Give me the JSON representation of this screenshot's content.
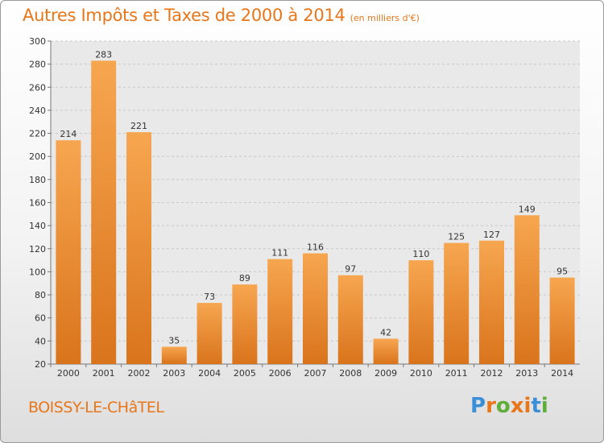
{
  "chart_data": {
    "type": "bar",
    "title": "Autres Impôts et Taxes de 2000 à 2014",
    "subtitle": "(en milliers d'€)",
    "categories": [
      "2000",
      "2001",
      "2002",
      "2003",
      "2004",
      "2005",
      "2006",
      "2007",
      "2008",
      "2009",
      "2010",
      "2011",
      "2012",
      "2013",
      "2014"
    ],
    "values": [
      214,
      283,
      221,
      35,
      73,
      89,
      111,
      116,
      97,
      42,
      110,
      125,
      127,
      149,
      95
    ],
    "ylim": [
      20,
      300
    ],
    "yticks": [
      20,
      40,
      60,
      80,
      100,
      120,
      140,
      160,
      180,
      200,
      220,
      240,
      260,
      280,
      300
    ],
    "grid": true,
    "bar_color_light": "#f7a650",
    "bar_color_dark": "#d9741c"
  },
  "footer": {
    "commune": "BOISSY-LE-CHâTEL",
    "logo": "Proxiti",
    "logo_colors": [
      "#3b8fd6",
      "#e8761a",
      "#5fae3a",
      "#e8761a",
      "#e8761a",
      "#3b8fd6",
      "#5fae3a"
    ]
  }
}
